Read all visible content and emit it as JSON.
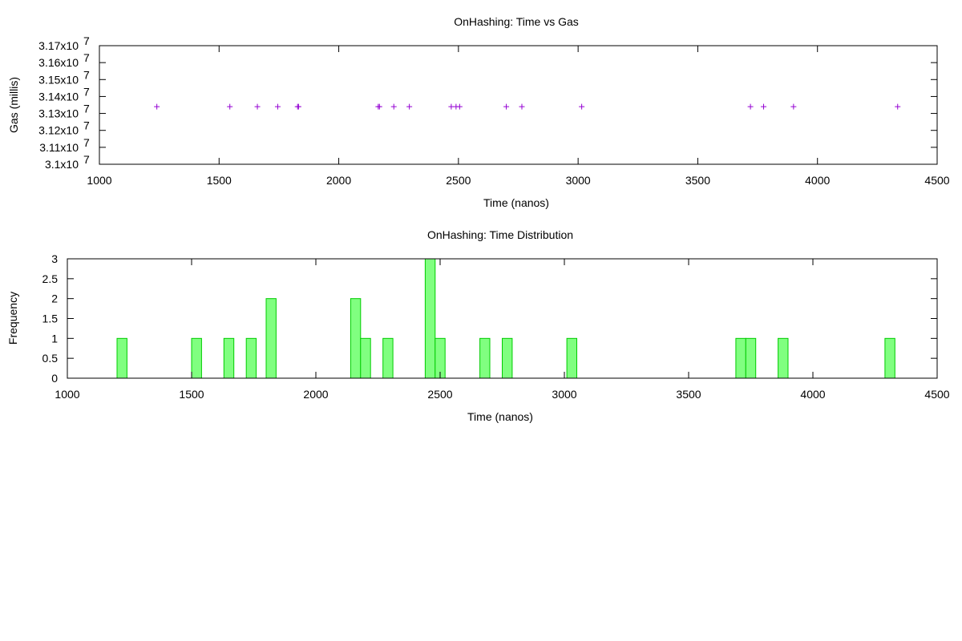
{
  "chart_data": [
    {
      "type": "scatter",
      "title": "OnHashing: Time vs Gas",
      "xlabel": "Time (nanos)",
      "ylabel": "Gas (millis)",
      "xlim": [
        1000,
        4500
      ],
      "ylim": [
        31000000,
        31700000
      ],
      "grid": false,
      "marker": "+",
      "color": "#9400d3",
      "x_ticks": [
        "1000",
        "1500",
        "2000",
        "2500",
        "3000",
        "3500",
        "4000",
        "4500"
      ],
      "y_ticks": [
        {
          "mantissa": "3.1x10",
          "exp": "7"
        },
        {
          "mantissa": "3.11x10",
          "exp": "7"
        },
        {
          "mantissa": "3.12x10",
          "exp": "7"
        },
        {
          "mantissa": "3.13x10",
          "exp": "7"
        },
        {
          "mantissa": "3.14x10",
          "exp": "7"
        },
        {
          "mantissa": "3.15x10",
          "exp": "7"
        },
        {
          "mantissa": "3.16x10",
          "exp": "7"
        },
        {
          "mantissa": "3.17x10",
          "exp": "7"
        }
      ],
      "x": [
        1240,
        1545,
        1660,
        1745,
        1828,
        1832,
        2165,
        2170,
        2230,
        2295,
        2470,
        2490,
        2505,
        2700,
        2765,
        3015,
        3720,
        3775,
        3900,
        4335
      ],
      "y": [
        31340000,
        31340000,
        31340000,
        31340000,
        31340000,
        31340000,
        31340000,
        31340000,
        31340000,
        31340000,
        31340000,
        31340000,
        31340000,
        31340000,
        31340000,
        31340000,
        31340000,
        31340000,
        31340000,
        31340000
      ]
    },
    {
      "type": "bar",
      "title": "OnHashing: Time Distribution",
      "xlabel": "Time (nanos)",
      "ylabel": "Frequency",
      "xlim": [
        1000,
        4500
      ],
      "ylim": [
        0,
        3
      ],
      "grid": false,
      "bin_width": 40,
      "fill_color": "#80ff80",
      "edge_color": "#00cc00",
      "x_ticks": [
        "1000",
        "1500",
        "2000",
        "2500",
        "3000",
        "3500",
        "4000",
        "4500"
      ],
      "y_ticks": [
        "0",
        "0.5",
        "1",
        "1.5",
        "2",
        "2.5",
        "3"
      ],
      "x": [
        1220,
        1520,
        1650,
        1740,
        1820,
        2160,
        2200,
        2290,
        2460,
        2500,
        2680,
        2770,
        3030,
        3710,
        3750,
        3880,
        4310
      ],
      "values": [
        1,
        1,
        1,
        1,
        2,
        2,
        1,
        1,
        3,
        1,
        1,
        1,
        1,
        1,
        1,
        1,
        1
      ]
    }
  ]
}
